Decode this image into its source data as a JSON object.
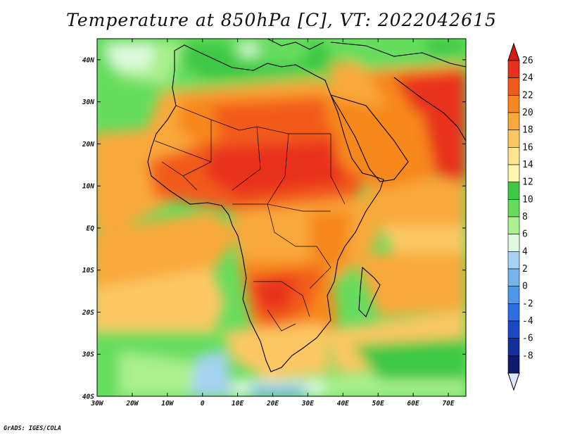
{
  "title": "Temperature at 850hPa [C], VT: 2022042615",
  "credit": "GrADS: IGES/COLA",
  "map": {
    "lon_range": [
      -30,
      75
    ],
    "lat_range": [
      -40,
      45
    ],
    "lon_ticks": [
      "30W",
      "20W",
      "10W",
      "0",
      "10E",
      "20E",
      "30E",
      "40E",
      "50E",
      "60E",
      "70E"
    ],
    "lon_tick_values": [
      -30,
      -20,
      -10,
      0,
      10,
      20,
      30,
      40,
      50,
      60,
      70
    ],
    "lat_ticks": [
      "40S",
      "30S",
      "20S",
      "10S",
      "EQ",
      "10N",
      "20N",
      "30N",
      "40N"
    ],
    "lat_tick_values": [
      -40,
      -30,
      -20,
      -10,
      0,
      10,
      20,
      30,
      40
    ]
  },
  "colorbar": {
    "labels": [
      "26",
      "24",
      "22",
      "20",
      "18",
      "16",
      "14",
      "12",
      "10",
      "8",
      "6",
      "4",
      "2",
      "0",
      "-2",
      "-4",
      "-6",
      "-8"
    ],
    "colors": [
      "#e8301e",
      "#f25a1c",
      "#f7881f",
      "#f9a83a",
      "#fcc763",
      "#ffe58d",
      "#fdf7ae",
      "#3ec844",
      "#66dd5e",
      "#aaf08e",
      "#dffadf",
      "#a7d2f4",
      "#77b4ef",
      "#4f97ea",
      "#2d6fe0",
      "#1b49c4",
      "#132f9c",
      "#0d1a6e"
    ],
    "under_color": "#dbe6ff",
    "over_color": "#d61d14"
  },
  "chart_data": {
    "type": "heatmap",
    "title": "Temperature at 850hPa [C], VT: 2022042615",
    "variable": "Temperature at 850hPa [C]",
    "valid_time": "2022042615",
    "x_range": [
      -30,
      75
    ],
    "y_range": [
      -40,
      45
    ],
    "levels": [
      -8,
      -6,
      -4,
      -2,
      0,
      2,
      4,
      6,
      8,
      10,
      12,
      14,
      16,
      18,
      20,
      22,
      24,
      26
    ]
  }
}
